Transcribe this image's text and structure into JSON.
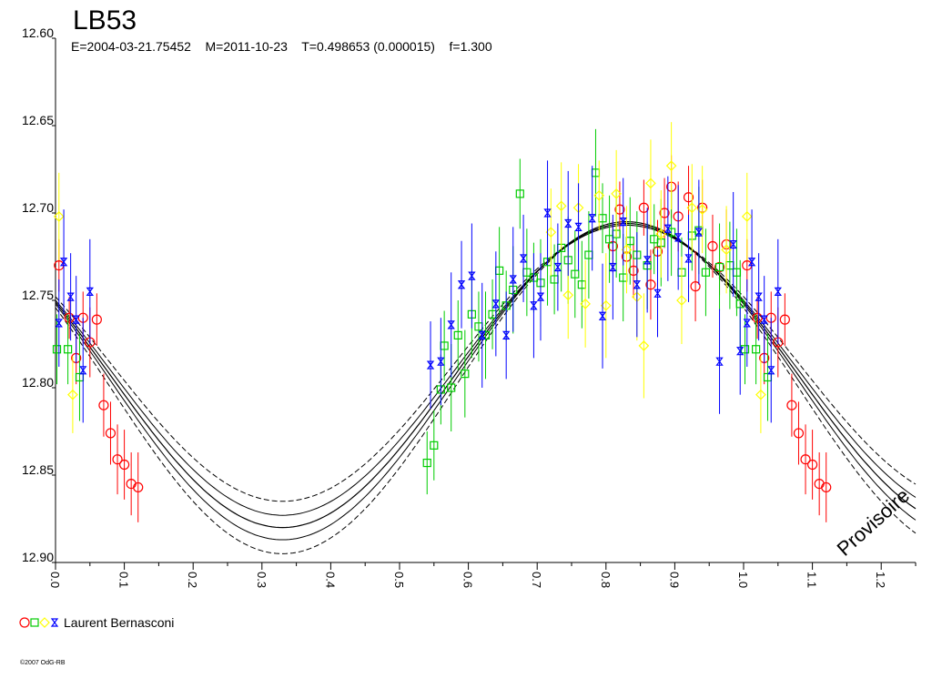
{
  "chart_data": {
    "type": "scatter",
    "title": "LB53",
    "subtitle": "E=2004-03-21.75452    M=2011-10-23    T=0.498653 (0.000015)    f=1.300",
    "xlabel": "",
    "ylabel": "",
    "xlim": [
      0,
      1.25
    ],
    "ylim": [
      12.6,
      12.9
    ],
    "y_inverted": true,
    "y_ticks": [
      "12.60",
      "12.65",
      "12.70",
      "12.75",
      "12.80",
      "12.85",
      "12.90"
    ],
    "x_ticks": [
      "0.0",
      "0.1",
      "0.2",
      "0.3",
      "0.4",
      "0.5",
      "0.6",
      "0.7",
      "0.8",
      "0.9",
      "1.0",
      "1.1",
      "1.2"
    ],
    "grid": false,
    "legend": {
      "placement": "bottom-left",
      "label": "Laurent Bernasconi",
      "marker_colors": [
        "#ff0000",
        "#00cc00",
        "#ffff00",
        "#0000ff"
      ]
    },
    "copyright": "©2007 OdG-RB",
    "watermark": "Provisoire",
    "fit": {
      "mean": 12.793,
      "amplitude": 0.087,
      "min_phase": 0.33
    },
    "series": [
      {
        "marker": "circle",
        "color": "#ff0000",
        "points": [
          [
            0.005,
            12.73,
            0.015
          ],
          [
            0.02,
            12.76,
            0.012
          ],
          [
            0.03,
            12.783,
            0.015
          ],
          [
            0.04,
            12.76,
            0.015
          ],
          [
            0.05,
            12.774,
            0.02
          ],
          [
            0.06,
            12.761,
            0.015
          ],
          [
            0.07,
            12.81,
            0.018
          ],
          [
            0.08,
            12.826,
            0.018
          ],
          [
            0.09,
            12.841,
            0.02
          ],
          [
            0.1,
            12.844,
            0.02
          ],
          [
            0.11,
            12.855,
            0.018
          ],
          [
            0.12,
            12.857,
            0.02
          ],
          [
            0.81,
            12.719,
            0.015
          ],
          [
            0.82,
            12.698,
            0.016
          ],
          [
            0.83,
            12.725,
            0.015
          ],
          [
            0.84,
            12.733,
            0.016
          ],
          [
            0.855,
            12.697,
            0.016
          ],
          [
            0.865,
            12.741,
            0.02
          ],
          [
            0.875,
            12.722,
            0.018
          ],
          [
            0.885,
            12.7,
            0.02
          ],
          [
            0.895,
            12.685,
            0.018
          ],
          [
            0.905,
            12.702,
            0.02
          ],
          [
            0.92,
            12.691,
            0.018
          ],
          [
            0.93,
            12.742,
            0.02
          ],
          [
            0.94,
            12.697,
            0.016
          ],
          [
            0.955,
            12.719,
            0.018
          ],
          [
            0.965,
            12.731,
            0.016
          ],
          [
            0.975,
            12.718,
            0.02
          ],
          [
            1.005,
            12.73,
            0.015
          ],
          [
            1.02,
            12.76,
            0.012
          ],
          [
            1.03,
            12.783,
            0.015
          ],
          [
            1.04,
            12.76,
            0.015
          ],
          [
            1.05,
            12.774,
            0.02
          ],
          [
            1.06,
            12.761,
            0.015
          ],
          [
            1.07,
            12.81,
            0.018
          ],
          [
            1.08,
            12.826,
            0.018
          ],
          [
            1.09,
            12.841,
            0.02
          ],
          [
            1.1,
            12.844,
            0.02
          ],
          [
            1.11,
            12.855,
            0.018
          ],
          [
            1.12,
            12.857,
            0.02
          ]
        ]
      },
      {
        "marker": "square",
        "color": "#00cc00",
        "points": [
          [
            0.002,
            12.778,
            0.02
          ],
          [
            0.018,
            12.778,
            0.02
          ],
          [
            0.035,
            12.794,
            0.025
          ],
          [
            0.54,
            12.843,
            0.018
          ],
          [
            0.55,
            12.833,
            0.02
          ],
          [
            0.56,
            12.801,
            0.02
          ],
          [
            0.565,
            12.776,
            0.02
          ],
          [
            0.575,
            12.8,
            0.025
          ],
          [
            0.585,
            12.77,
            0.02
          ],
          [
            0.595,
            12.792,
            0.025
          ],
          [
            0.605,
            12.758,
            0.025
          ],
          [
            0.615,
            12.765,
            0.02
          ],
          [
            0.625,
            12.77,
            0.025
          ],
          [
            0.635,
            12.758,
            0.02
          ],
          [
            0.645,
            12.733,
            0.025
          ],
          [
            0.655,
            12.753,
            0.02
          ],
          [
            0.665,
            12.744,
            0.025
          ],
          [
            0.675,
            12.689,
            0.02
          ],
          [
            0.685,
            12.734,
            0.025
          ],
          [
            0.695,
            12.737,
            0.02
          ],
          [
            0.705,
            12.74,
            0.025
          ],
          [
            0.715,
            12.728,
            0.025
          ],
          [
            0.725,
            12.738,
            0.02
          ],
          [
            0.735,
            12.72,
            0.025
          ],
          [
            0.745,
            12.727,
            0.025
          ],
          [
            0.755,
            12.735,
            0.025
          ],
          [
            0.765,
            12.741,
            0.025
          ],
          [
            0.775,
            12.724,
            0.025
          ],
          [
            0.785,
            12.677,
            0.025
          ],
          [
            0.795,
            12.703,
            0.02
          ],
          [
            0.805,
            12.715,
            0.025
          ],
          [
            0.815,
            12.712,
            0.025
          ],
          [
            0.825,
            12.737,
            0.025
          ],
          [
            0.835,
            12.716,
            0.025
          ],
          [
            0.845,
            12.724,
            0.025
          ],
          [
            0.86,
            12.73,
            0.025
          ],
          [
            0.87,
            12.715,
            0.02
          ],
          [
            0.88,
            12.717,
            0.025
          ],
          [
            0.895,
            12.711,
            0.025
          ],
          [
            0.91,
            12.734,
            0.02
          ],
          [
            0.925,
            12.713,
            0.02
          ],
          [
            0.935,
            12.71,
            0.025
          ],
          [
            0.945,
            12.734,
            0.025
          ],
          [
            0.965,
            12.731,
            0.025
          ],
          [
            0.98,
            12.73,
            0.025
          ],
          [
            0.99,
            12.734,
            0.025
          ],
          [
            0.995,
            12.752,
            0.025
          ],
          [
            1.002,
            12.778,
            0.02
          ],
          [
            1.018,
            12.778,
            0.02
          ],
          [
            1.035,
            12.794,
            0.025
          ]
        ]
      },
      {
        "marker": "diamond",
        "color": "#ffff00",
        "points": [
          [
            0.005,
            12.702,
            0.025
          ],
          [
            0.025,
            12.804,
            0.022
          ],
          [
            0.72,
            12.711,
            0.025
          ],
          [
            0.735,
            12.696,
            0.025
          ],
          [
            0.745,
            12.747,
            0.025
          ],
          [
            0.76,
            12.697,
            0.025
          ],
          [
            0.77,
            12.752,
            0.025
          ],
          [
            0.79,
            12.69,
            0.02
          ],
          [
            0.8,
            12.753,
            0.03
          ],
          [
            0.815,
            12.689,
            0.025
          ],
          [
            0.83,
            12.721,
            0.025
          ],
          [
            0.845,
            12.748,
            0.025
          ],
          [
            0.855,
            12.776,
            0.03
          ],
          [
            0.865,
            12.683,
            0.025
          ],
          [
            0.88,
            12.712,
            0.025
          ],
          [
            0.895,
            12.673,
            0.025
          ],
          [
            0.91,
            12.75,
            0.025
          ],
          [
            0.925,
            12.697,
            0.025
          ],
          [
            0.94,
            12.698,
            0.025
          ],
          [
            0.975,
            12.721,
            0.025
          ],
          [
            1.005,
            12.702,
            0.025
          ],
          [
            1.025,
            12.804,
            0.022
          ]
        ]
      },
      {
        "marker": "hourglass",
        "color": "#0000ff",
        "points": [
          [
            0.005,
            12.763,
            0.025
          ],
          [
            0.012,
            12.728,
            0.03
          ],
          [
            0.022,
            12.748,
            0.025
          ],
          [
            0.03,
            12.761,
            0.025
          ],
          [
            0.04,
            12.79,
            0.03
          ],
          [
            0.05,
            12.745,
            0.03
          ],
          [
            0.545,
            12.787,
            0.025
          ],
          [
            0.56,
            12.785,
            0.025
          ],
          [
            0.575,
            12.764,
            0.03
          ],
          [
            0.59,
            12.741,
            0.025
          ],
          [
            0.605,
            12.736,
            0.03
          ],
          [
            0.62,
            12.77,
            0.03
          ],
          [
            0.64,
            12.752,
            0.03
          ],
          [
            0.655,
            12.77,
            0.025
          ],
          [
            0.665,
            12.738,
            0.03
          ],
          [
            0.68,
            12.726,
            0.025
          ],
          [
            0.695,
            12.753,
            0.03
          ],
          [
            0.705,
            12.748,
            0.025
          ],
          [
            0.715,
            12.7,
            0.03
          ],
          [
            0.73,
            12.731,
            0.025
          ],
          [
            0.745,
            12.706,
            0.03
          ],
          [
            0.76,
            12.708,
            0.025
          ],
          [
            0.78,
            12.703,
            0.03
          ],
          [
            0.795,
            12.759,
            0.03
          ],
          [
            0.81,
            12.731,
            0.03
          ],
          [
            0.825,
            12.705,
            0.025
          ],
          [
            0.845,
            12.741,
            0.03
          ],
          [
            0.86,
            12.727,
            0.03
          ],
          [
            0.875,
            12.746,
            0.025
          ],
          [
            0.89,
            12.709,
            0.03
          ],
          [
            0.905,
            12.714,
            0.03
          ],
          [
            0.92,
            12.726,
            0.025
          ],
          [
            0.935,
            12.711,
            0.03
          ],
          [
            0.965,
            12.785,
            0.03
          ],
          [
            0.985,
            12.718,
            0.03
          ],
          [
            0.995,
            12.779,
            0.025
          ],
          [
            1.005,
            12.763,
            0.025
          ],
          [
            1.012,
            12.728,
            0.03
          ],
          [
            1.022,
            12.748,
            0.025
          ],
          [
            1.03,
            12.761,
            0.025
          ],
          [
            1.04,
            12.79,
            0.03
          ],
          [
            1.05,
            12.745,
            0.03
          ]
        ]
      }
    ]
  }
}
